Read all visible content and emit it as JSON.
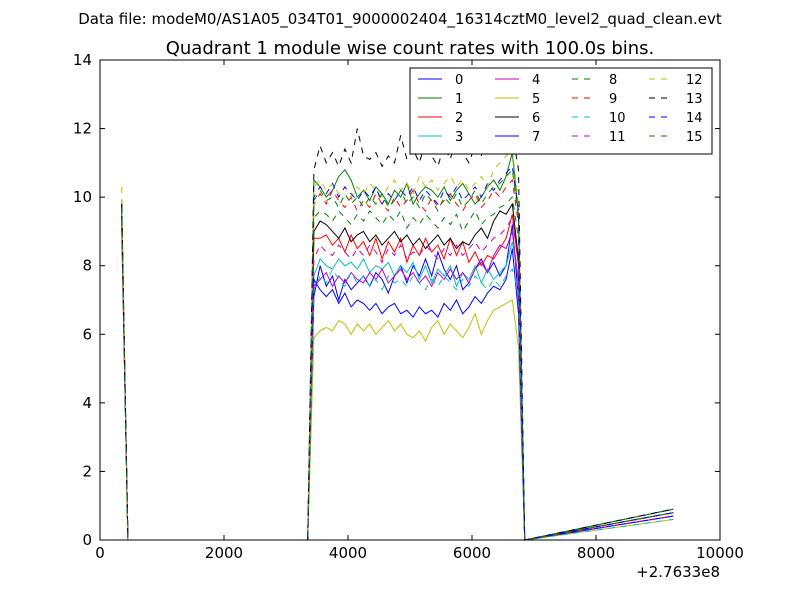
{
  "chart_data": {
    "type": "line",
    "suptitle": "Data file: modeM0/AS1A05_034T01_9000002404_16314cztM0_level2_quad_clean.evt",
    "title": "Quadrant 1 module wise count rates with 100.0s bins.",
    "xlabel": "",
    "ylabel": "",
    "x_offset_label": "+2.7633e8",
    "xlim": [
      0,
      10000
    ],
    "ylim": [
      0,
      14
    ],
    "xticks": [
      0,
      2000,
      4000,
      6000,
      8000,
      10000
    ],
    "yticks": [
      0,
      2,
      4,
      6,
      8,
      10,
      12,
      14
    ],
    "grid": false,
    "legend": {
      "placement": "top-right",
      "columns": 4
    },
    "x": [
      350,
      450,
      3350,
      3450,
      3550,
      3650,
      3750,
      3850,
      3950,
      4050,
      4150,
      4250,
      4350,
      4450,
      4550,
      4650,
      4750,
      4850,
      4950,
      5050,
      5150,
      5250,
      5350,
      5450,
      5550,
      5650,
      5750,
      5850,
      5950,
      6050,
      6150,
      6250,
      6350,
      6450,
      6550,
      6650,
      6750,
      6850,
      9250
    ],
    "series": [
      {
        "name": "0",
        "color": "#0000ff",
        "dash": false,
        "values": [
          9.6,
          0,
          0,
          7.1,
          8.0,
          7.4,
          7.7,
          7.0,
          7.6,
          7.3,
          7.5,
          7.7,
          7.4,
          7.8,
          7.6,
          7.2,
          7.7,
          8.0,
          7.5,
          8.0,
          7.7,
          8.2,
          7.7,
          8.4,
          7.9,
          7.6,
          8.0,
          7.3,
          7.5,
          7.9,
          8.2,
          7.8,
          8.1,
          7.7,
          8.0,
          9.2,
          7.0,
          0,
          0.9
        ]
      },
      {
        "name": "1",
        "color": "#008000",
        "dash": false,
        "values": [
          9.7,
          0,
          0,
          10.5,
          10.3,
          10.0,
          10.2,
          10.6,
          10.8,
          10.5,
          10.0,
          10.2,
          9.9,
          10.3,
          10.1,
          9.8,
          10.2,
          10.0,
          10.4,
          9.8,
          10.1,
          10.3,
          10.2,
          10.0,
          10.3,
          9.9,
          10.2,
          10.4,
          10.1,
          9.8,
          10.0,
          10.3,
          10.5,
          10.2,
          10.6,
          11.3,
          9.5,
          0,
          0.9
        ]
      },
      {
        "name": "2",
        "color": "#ff0000",
        "dash": false,
        "values": [
          9.1,
          0,
          0,
          8.8,
          8.8,
          8.9,
          8.6,
          8.8,
          8.4,
          8.9,
          8.5,
          8.7,
          8.3,
          8.8,
          8.2,
          8.7,
          8.4,
          8.8,
          8.1,
          8.6,
          8.3,
          8.8,
          8.4,
          8.6,
          8.2,
          8.8,
          8.3,
          8.7,
          8.1,
          8.4,
          8.0,
          8.3,
          8.2,
          8.5,
          8.8,
          9.5,
          8.0,
          0,
          0.8
        ]
      },
      {
        "name": "3",
        "color": "#00bfbf",
        "dash": false,
        "values": [
          9.5,
          0,
          0,
          7.7,
          8.2,
          8.0,
          7.9,
          8.2,
          8.0,
          8.1,
          7.9,
          8.2,
          7.8,
          8.0,
          7.9,
          8.1,
          7.7,
          8.0,
          7.8,
          8.1,
          7.6,
          8.0,
          7.5,
          7.9,
          7.7,
          8.0,
          7.4,
          7.8,
          7.6,
          8.0,
          7.5,
          7.9,
          7.6,
          7.8,
          8.0,
          8.7,
          7.6,
          0,
          0.7
        ]
      },
      {
        "name": "4",
        "color": "#bf00bf",
        "dash": false,
        "values": [
          9.3,
          0,
          0,
          7.4,
          7.6,
          7.8,
          7.4,
          7.7,
          7.5,
          7.8,
          7.6,
          7.5,
          7.8,
          7.6,
          7.9,
          7.5,
          7.7,
          7.9,
          7.6,
          7.8,
          7.5,
          7.7,
          7.4,
          7.8,
          7.6,
          7.9,
          7.6,
          7.8,
          7.5,
          7.9,
          8.1,
          7.8,
          8.3,
          8.6,
          8.5,
          9.0,
          7.5,
          0,
          0.7
        ]
      },
      {
        "name": "5",
        "color": "#bfbf00",
        "dash": false,
        "values": [
          9.5,
          0,
          0,
          5.9,
          6.1,
          6.2,
          6.1,
          6.4,
          6.3,
          6.0,
          6.3,
          6.1,
          6.3,
          6.0,
          6.2,
          6.4,
          6.1,
          6.3,
          6.0,
          5.9,
          6.1,
          5.8,
          6.2,
          6.4,
          6.0,
          6.3,
          6.1,
          5.9,
          6.2,
          6.6,
          6.0,
          6.4,
          6.7,
          6.8,
          6.9,
          7.0,
          5.6,
          0,
          0.6
        ]
      },
      {
        "name": "6",
        "color": "#000000",
        "dash": false,
        "values": [
          9.8,
          0,
          0,
          9.0,
          9.3,
          9.2,
          9.0,
          8.8,
          9.1,
          8.7,
          8.9,
          9.0,
          8.7,
          8.9,
          8.6,
          8.8,
          9.0,
          8.7,
          8.9,
          8.6,
          8.8,
          8.5,
          8.7,
          8.9,
          8.6,
          8.8,
          8.5,
          8.7,
          8.6,
          8.9,
          9.1,
          8.8,
          9.3,
          9.6,
          9.5,
          9.8,
          8.2,
          0,
          0.8
        ]
      },
      {
        "name": "7",
        "color": "#0000ff",
        "dash": false,
        "values": [
          9.4,
          0,
          0,
          7.6,
          7.3,
          7.1,
          7.3,
          6.9,
          7.2,
          6.8,
          7.0,
          6.9,
          6.7,
          6.9,
          6.6,
          6.8,
          6.9,
          6.6,
          6.7,
          6.5,
          6.8,
          6.6,
          6.7,
          6.5,
          6.9,
          6.7,
          7.0,
          6.6,
          6.8,
          7.1,
          6.9,
          7.2,
          7.4,
          7.3,
          7.6,
          8.5,
          6.6,
          0,
          0.7
        ]
      },
      {
        "name": "8",
        "color": "#008000",
        "dash": true,
        "values": [
          9.8,
          0,
          0,
          9.4,
          9.6,
          9.5,
          9.3,
          9.6,
          9.4,
          9.2,
          9.5,
          9.3,
          9.6,
          9.4,
          9.2,
          9.5,
          9.3,
          9.6,
          9.1,
          9.4,
          9.2,
          9.5,
          9.3,
          9.1,
          9.4,
          9.2,
          9.5,
          9.0,
          9.3,
          9.6,
          9.2,
          9.4,
          9.5,
          9.7,
          9.8,
          10.0,
          8.8,
          0,
          0.8
        ]
      },
      {
        "name": "9",
        "color": "#ff0000",
        "dash": true,
        "values": [
          9.9,
          0,
          0,
          9.8,
          10.1,
          9.8,
          10.2,
          9.9,
          9.7,
          10.0,
          9.6,
          9.9,
          9.7,
          10.1,
          9.8,
          9.6,
          10.0,
          9.7,
          9.9,
          10.2,
          9.8,
          9.6,
          10.0,
          9.7,
          9.9,
          10.1,
          9.8,
          9.6,
          9.9,
          10.1,
          9.7,
          9.9,
          10.2,
          10.0,
          10.3,
          10.5,
          9.2,
          0,
          0.8
        ]
      },
      {
        "name": "10",
        "color": "#00bfbf",
        "dash": true,
        "values": [
          9.6,
          0,
          0,
          7.3,
          7.7,
          7.5,
          7.9,
          7.6,
          7.4,
          7.8,
          7.5,
          7.7,
          7.4,
          7.6,
          7.3,
          7.7,
          7.5,
          7.6,
          7.4,
          7.7,
          7.5,
          7.3,
          7.6,
          7.4,
          7.7,
          7.5,
          7.3,
          7.6,
          7.4,
          7.7,
          7.5,
          7.3,
          7.6,
          7.4,
          7.7,
          7.9,
          7.2,
          0,
          0.6
        ]
      },
      {
        "name": "11",
        "color": "#bf00bf",
        "dash": true,
        "values": [
          9.5,
          0,
          0,
          8.2,
          8.6,
          8.4,
          8.3,
          8.6,
          8.4,
          8.2,
          8.5,
          8.3,
          8.6,
          8.4,
          8.1,
          8.5,
          8.3,
          8.6,
          8.2,
          8.4,
          8.3,
          8.6,
          8.4,
          8.2,
          8.5,
          8.3,
          8.6,
          8.3,
          8.5,
          8.7,
          8.4,
          8.6,
          8.8,
          8.9,
          9.1,
          9.4,
          8.0,
          0,
          0.7
        ]
      },
      {
        "name": "12",
        "color": "#bfbf00",
        "dash": true,
        "values": [
          10.3,
          0,
          0,
          10.3,
          10.5,
          10.2,
          10.4,
          10.1,
          10.3,
          10.0,
          10.3,
          10.1,
          10.4,
          10.2,
          10.0,
          10.3,
          10.5,
          10.2,
          10.4,
          10.1,
          10.6,
          10.3,
          10.5,
          10.2,
          10.4,
          10.6,
          10.3,
          10.5,
          10.2,
          10.4,
          10.6,
          10.3,
          10.8,
          11.0,
          11.2,
          11.4,
          9.8,
          0,
          0.8
        ]
      },
      {
        "name": "13",
        "color": "#000000",
        "dash": true,
        "values": [
          9.8,
          0,
          0,
          10.8,
          11.5,
          11.0,
          11.3,
          10.9,
          11.4,
          11.0,
          12.0,
          11.2,
          11.1,
          11.3,
          10.9,
          11.2,
          11.0,
          11.8,
          11.1,
          11.4,
          11.0,
          11.6,
          11.2,
          10.9,
          11.5,
          11.1,
          11.8,
          11.3,
          11.0,
          11.5,
          11.2,
          11.8,
          11.4,
          12.0,
          12.1,
          11.9,
          10.8,
          0,
          0.9
        ]
      },
      {
        "name": "14",
        "color": "#0000ff",
        "dash": true,
        "values": [
          9.7,
          0,
          0,
          10.0,
          10.3,
          10.1,
          10.4,
          10.0,
          10.3,
          10.1,
          9.9,
          10.2,
          10.0,
          10.3,
          9.8,
          10.1,
          9.9,
          10.2,
          10.0,
          10.3,
          9.9,
          10.2,
          10.0,
          9.8,
          10.2,
          10.0,
          10.3,
          9.9,
          10.1,
          10.3,
          10.0,
          10.4,
          10.2,
          10.5,
          10.7,
          10.9,
          9.6,
          0,
          0.8
        ]
      },
      {
        "name": "15",
        "color": "#008000",
        "dash": true,
        "values": [
          9.7,
          0,
          0,
          9.9,
          10.2,
          9.9,
          10.0,
          9.7,
          10.1,
          9.8,
          10.0,
          9.7,
          10.0,
          9.8,
          10.1,
          9.7,
          9.9,
          10.2,
          9.8,
          10.0,
          9.7,
          10.1,
          9.9,
          9.6,
          10.0,
          9.8,
          10.1,
          9.7,
          9.9,
          10.2,
          9.8,
          10.1,
          10.3,
          10.4,
          10.6,
          10.8,
          9.4,
          0,
          0.8
        ]
      }
    ]
  }
}
